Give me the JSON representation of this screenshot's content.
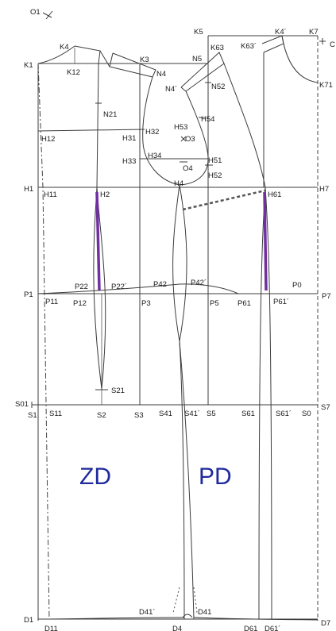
{
  "diagram": {
    "panels": {
      "back": "ZD",
      "front": "PD"
    },
    "labels": {
      "o1": "O1",
      "k1": "K1",
      "k4": "K4",
      "k12": "K12",
      "k3": "K3",
      "n4": "N4",
      "n5": "N5",
      "k5": "K5",
      "k63": "K63",
      "k63p": "K63´",
      "k4p": "K4´",
      "k7": "K7",
      "c": "C",
      "k71": "K71",
      "n4p": "N4´",
      "n52": "N52",
      "n21": "N21",
      "h12": "H12",
      "h31": "H31",
      "h32": "H32",
      "h53": "H53",
      "h54": "H54",
      "o3": "O3",
      "h34": "H34",
      "h33": "H33",
      "o4": "O4",
      "h51": "H51",
      "h52": "H52",
      "h1": "H1",
      "h11": "H11",
      "h2": "H2",
      "h4": "H4",
      "h61": "H61",
      "h7": "H7",
      "p22": "P22",
      "p22p": "P22´",
      "p42": "P42",
      "p42p": "P42´",
      "p0": "P0",
      "p1": "P1",
      "p11": "P11",
      "p12": "P12",
      "p3": "P3",
      "p5": "P5",
      "p61": "P61",
      "p61p": "P61´",
      "p7": "P7",
      "s21": "S21",
      "s01": "S01",
      "s1": "S1",
      "s11": "S11",
      "s2": "S2",
      "s3": "S3",
      "s41": "S41",
      "s41p": "S41´",
      "s5": "S5",
      "s61": "S61",
      "s61p": "S61´",
      "s0": "S0",
      "s7": "S7",
      "d41p": "D41´",
      "d41": "D41",
      "d1": "D1",
      "d11": "D11",
      "d4": "D4",
      "d61": "D61",
      "d61p": "D61´",
      "d7": "D7"
    },
    "colors": {
      "panel_label": "#1f2a9c",
      "dart": "#7030a0",
      "line": "#3c3c3c"
    }
  }
}
